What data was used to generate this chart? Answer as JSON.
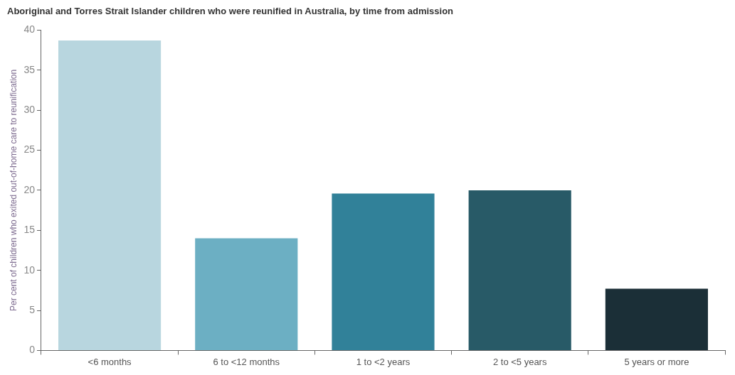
{
  "chart_data": {
    "type": "bar",
    "title": "Aboriginal and Torres Strait Islander children who were reunified in Australia, by time from admission",
    "ylabel": "Per cent of children who exited out-of-home care to reunification",
    "categories": [
      "<6 months",
      "6 to <12 months",
      "1 to <2 years",
      "2 to <5 years",
      "5 years or more"
    ],
    "values": [
      38.7,
      14.0,
      19.6,
      20.0,
      7.7
    ],
    "colors": [
      "#b8d6df",
      "#6cafc3",
      "#318199",
      "#285a67",
      "#1b2f37"
    ],
    "ylim": [
      0,
      40
    ],
    "yticks": [
      0,
      5,
      10,
      15,
      20,
      25,
      30,
      35,
      40
    ],
    "grid": false,
    "legend": false
  }
}
